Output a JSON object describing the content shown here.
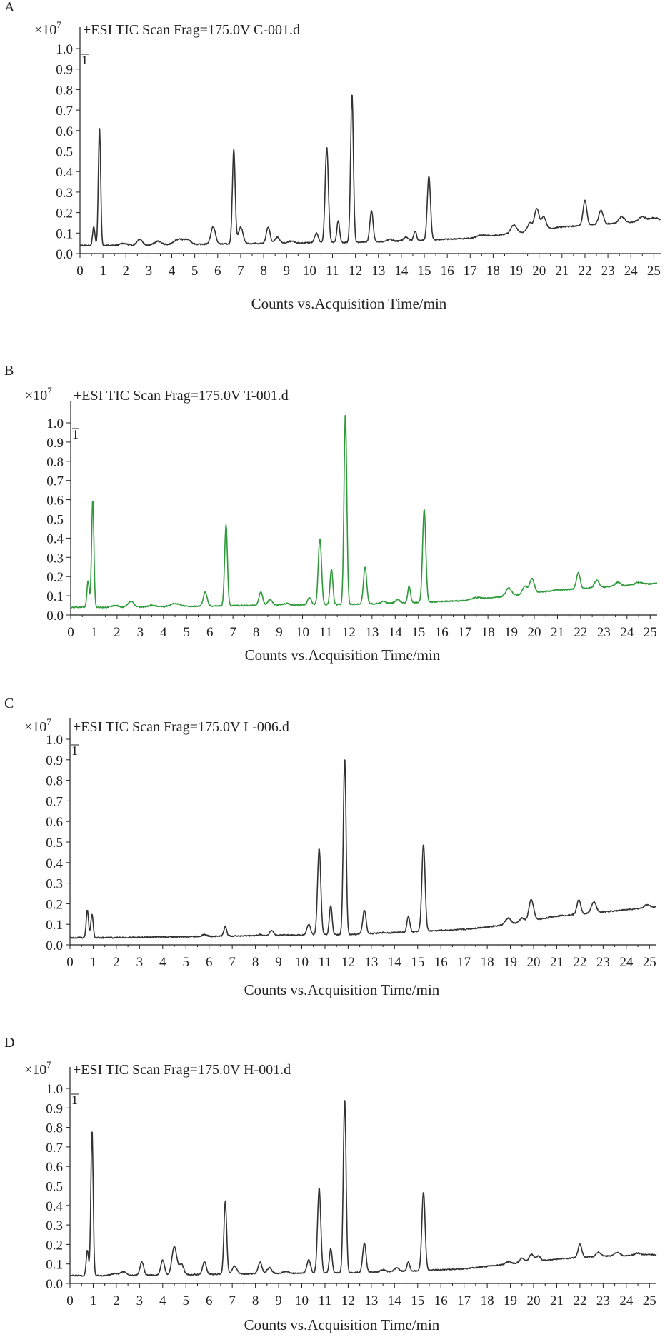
{
  "chart_data": [
    {
      "type": "line",
      "panel_label": "A",
      "title": "+ESI TIC Scan Frag=175.0V C-001.d",
      "scale_base": "×10",
      "scale_exp": "7",
      "y_marker": "1",
      "xlabel": "Counts vs.Acquisition Time/min",
      "xlim": [
        0,
        25.3
      ],
      "ylim": [
        0,
        1.0
      ],
      "x_ticks": [
        0,
        1,
        2,
        3,
        4,
        5,
        6,
        7,
        8,
        9,
        10,
        11,
        12,
        13,
        14,
        15,
        16,
        17,
        18,
        19,
        20,
        21,
        22,
        23,
        24,
        25
      ],
      "y_ticks": [
        "0.0",
        "0.1",
        "0.2",
        "0.3",
        "0.4",
        "0.5",
        "0.6",
        "0.7",
        "0.8",
        "0.9",
        "1.0"
      ],
      "color": "#333333",
      "baseline": [
        [
          0,
          0.04
        ],
        [
          0.7,
          0.04
        ],
        [
          2,
          0.04
        ],
        [
          5,
          0.045
        ],
        [
          8,
          0.05
        ],
        [
          12,
          0.055
        ],
        [
          15,
          0.065
        ],
        [
          17,
          0.075
        ],
        [
          19,
          0.1
        ],
        [
          21,
          0.13
        ],
        [
          23,
          0.145
        ],
        [
          25.3,
          0.165
        ]
      ],
      "peaks": [
        [
          0.6,
          0.13,
          0.05
        ],
        [
          0.85,
          0.62,
          0.05
        ],
        [
          1.9,
          0.05,
          0.15
        ],
        [
          2.6,
          0.07,
          0.12
        ],
        [
          3.4,
          0.06,
          0.15
        ],
        [
          4.3,
          0.07,
          0.2
        ],
        [
          4.7,
          0.065,
          0.15
        ],
        [
          5.8,
          0.13,
          0.1
        ],
        [
          6.7,
          0.51,
          0.06
        ],
        [
          7.0,
          0.13,
          0.1
        ],
        [
          8.2,
          0.13,
          0.08
        ],
        [
          8.6,
          0.08,
          0.1
        ],
        [
          9.2,
          0.06,
          0.12
        ],
        [
          10.3,
          0.1,
          0.08
        ],
        [
          10.75,
          0.52,
          0.07
        ],
        [
          11.25,
          0.16,
          0.06
        ],
        [
          11.85,
          0.78,
          0.06
        ],
        [
          12.7,
          0.21,
          0.07
        ],
        [
          13.5,
          0.07,
          0.1
        ],
        [
          14.2,
          0.08,
          0.1
        ],
        [
          14.6,
          0.11,
          0.06
        ],
        [
          15.2,
          0.38,
          0.07
        ],
        [
          17.5,
          0.09,
          0.2
        ],
        [
          18.9,
          0.14,
          0.12
        ],
        [
          19.6,
          0.15,
          0.1
        ],
        [
          19.9,
          0.22,
          0.1
        ],
        [
          20.2,
          0.18,
          0.1
        ],
        [
          22.0,
          0.26,
          0.08
        ],
        [
          22.7,
          0.21,
          0.1
        ],
        [
          23.6,
          0.18,
          0.12
        ],
        [
          24.5,
          0.18,
          0.15
        ],
        [
          25.0,
          0.175,
          0.15
        ]
      ]
    },
    {
      "type": "line",
      "panel_label": "B",
      "title": "+ESI TIC Scan Frag=175.0V T-001.d",
      "scale_base": "×10",
      "scale_exp": "7",
      "y_marker": "1",
      "xlabel": "Counts vs.Acquisition Time/min",
      "xlim": [
        0,
        25.3
      ],
      "ylim": [
        0,
        1.05
      ],
      "x_ticks": [
        0,
        1,
        2,
        3,
        4,
        5,
        6,
        7,
        8,
        9,
        10,
        11,
        12,
        13,
        14,
        15,
        16,
        17,
        18,
        19,
        20,
        21,
        22,
        23,
        24,
        25
      ],
      "y_ticks": [
        "0.0",
        "0.1",
        "0.2",
        "0.3",
        "0.4",
        "0.5",
        "0.6",
        "0.7",
        "0.8",
        "0.9",
        "1.0"
      ],
      "color": "#2e9a3a",
      "baseline": [
        [
          0,
          0.04
        ],
        [
          0.7,
          0.04
        ],
        [
          2,
          0.04
        ],
        [
          5,
          0.045
        ],
        [
          8,
          0.05
        ],
        [
          12,
          0.055
        ],
        [
          15,
          0.065
        ],
        [
          17,
          0.075
        ],
        [
          19,
          0.1
        ],
        [
          21,
          0.13
        ],
        [
          23,
          0.145
        ],
        [
          25.3,
          0.165
        ]
      ],
      "peaks": [
        [
          0.75,
          0.18,
          0.05
        ],
        [
          0.95,
          0.6,
          0.05
        ],
        [
          1.9,
          0.05,
          0.15
        ],
        [
          2.6,
          0.07,
          0.12
        ],
        [
          3.5,
          0.05,
          0.15
        ],
        [
          4.5,
          0.06,
          0.2
        ],
        [
          5.8,
          0.12,
          0.08
        ],
        [
          6.7,
          0.47,
          0.06
        ],
        [
          8.2,
          0.12,
          0.08
        ],
        [
          8.6,
          0.08,
          0.1
        ],
        [
          9.3,
          0.06,
          0.12
        ],
        [
          10.3,
          0.09,
          0.08
        ],
        [
          10.75,
          0.4,
          0.07
        ],
        [
          11.25,
          0.24,
          0.06
        ],
        [
          11.85,
          1.05,
          0.06
        ],
        [
          12.7,
          0.25,
          0.07
        ],
        [
          13.5,
          0.07,
          0.1
        ],
        [
          14.1,
          0.08,
          0.1
        ],
        [
          14.6,
          0.15,
          0.06
        ],
        [
          15.25,
          0.55,
          0.07
        ],
        [
          17.5,
          0.09,
          0.2
        ],
        [
          18.9,
          0.14,
          0.12
        ],
        [
          19.6,
          0.15,
          0.1
        ],
        [
          19.9,
          0.19,
          0.1
        ],
        [
          21.9,
          0.22,
          0.08
        ],
        [
          22.7,
          0.18,
          0.1
        ],
        [
          23.6,
          0.17,
          0.12
        ],
        [
          24.5,
          0.17,
          0.15
        ]
      ]
    },
    {
      "type": "line",
      "panel_label": "C",
      "title": "+ESI TIC Scan Frag=175.0V L-006.d",
      "scale_base": "×10",
      "scale_exp": "7",
      "y_marker": "1",
      "xlabel": "Counts vs.Acquisition Time/min",
      "xlim": [
        0,
        25.3
      ],
      "ylim": [
        0,
        1.0
      ],
      "x_ticks": [
        0,
        1,
        2,
        3,
        4,
        5,
        6,
        7,
        8,
        9,
        10,
        11,
        12,
        13,
        14,
        15,
        16,
        17,
        18,
        19,
        20,
        21,
        22,
        23,
        24,
        25
      ],
      "y_ticks": [
        "0.0",
        "0.1",
        "0.2",
        "0.3",
        "0.4",
        "0.5",
        "0.6",
        "0.7",
        "0.8",
        "0.9",
        "1.0"
      ],
      "color": "#333333",
      "baseline": [
        [
          0,
          0.035
        ],
        [
          0.7,
          0.035
        ],
        [
          2,
          0.035
        ],
        [
          5,
          0.04
        ],
        [
          8,
          0.045
        ],
        [
          12,
          0.05
        ],
        [
          15,
          0.065
        ],
        [
          17,
          0.075
        ],
        [
          19,
          0.1
        ],
        [
          21,
          0.14
        ],
        [
          23,
          0.16
        ],
        [
          25.3,
          0.185
        ]
      ],
      "peaks": [
        [
          0.75,
          0.17,
          0.05
        ],
        [
          0.95,
          0.15,
          0.05
        ],
        [
          5.8,
          0.05,
          0.1
        ],
        [
          6.7,
          0.09,
          0.06
        ],
        [
          8.2,
          0.05,
          0.08
        ],
        [
          8.7,
          0.07,
          0.08
        ],
        [
          9.3,
          0.05,
          0.1
        ],
        [
          10.3,
          0.1,
          0.08
        ],
        [
          10.75,
          0.47,
          0.07
        ],
        [
          11.25,
          0.19,
          0.06
        ],
        [
          11.85,
          0.91,
          0.06
        ],
        [
          12.7,
          0.17,
          0.07
        ],
        [
          13.5,
          0.06,
          0.1
        ],
        [
          14.6,
          0.14,
          0.06
        ],
        [
          15.25,
          0.49,
          0.07
        ],
        [
          17.7,
          0.08,
          0.2
        ],
        [
          18.9,
          0.13,
          0.12
        ],
        [
          19.5,
          0.13,
          0.1
        ],
        [
          19.9,
          0.22,
          0.1
        ],
        [
          21.95,
          0.22,
          0.08
        ],
        [
          22.6,
          0.21,
          0.1
        ],
        [
          24.9,
          0.195,
          0.12
        ]
      ]
    },
    {
      "type": "line",
      "panel_label": "D",
      "title": "+ESI TIC Scan Frag=175.0V H-001.d",
      "scale_base": "×10",
      "scale_exp": "7",
      "y_marker": "1",
      "xlabel": "Counts vs.Acquisition Time/min",
      "xlim": [
        0,
        25.3
      ],
      "ylim": [
        0,
        1.0
      ],
      "x_ticks": [
        0,
        1,
        2,
        3,
        4,
        5,
        6,
        7,
        8,
        9,
        10,
        11,
        12,
        13,
        14,
        15,
        16,
        17,
        18,
        19,
        20,
        21,
        22,
        23,
        24,
        25
      ],
      "y_ticks": [
        "0.0",
        "0.1",
        "0.2",
        "0.3",
        "0.4",
        "0.5",
        "0.6",
        "0.7",
        "0.8",
        "0.9",
        "1.0"
      ],
      "color": "#333333",
      "baseline": [
        [
          0,
          0.04
        ],
        [
          0.7,
          0.04
        ],
        [
          2,
          0.04
        ],
        [
          5,
          0.045
        ],
        [
          8,
          0.05
        ],
        [
          12,
          0.055
        ],
        [
          15,
          0.065
        ],
        [
          17,
          0.075
        ],
        [
          19,
          0.1
        ],
        [
          21,
          0.125
        ],
        [
          23,
          0.14
        ],
        [
          25.3,
          0.145
        ]
      ],
      "peaks": [
        [
          0.75,
          0.17,
          0.05
        ],
        [
          0.95,
          0.79,
          0.05
        ],
        [
          1.9,
          0.05,
          0.15
        ],
        [
          2.3,
          0.06,
          0.12
        ],
        [
          3.1,
          0.11,
          0.08
        ],
        [
          4.0,
          0.12,
          0.08
        ],
        [
          4.5,
          0.19,
          0.1
        ],
        [
          4.8,
          0.1,
          0.1
        ],
        [
          5.8,
          0.11,
          0.08
        ],
        [
          6.7,
          0.42,
          0.06
        ],
        [
          7.1,
          0.09,
          0.1
        ],
        [
          8.2,
          0.11,
          0.08
        ],
        [
          8.6,
          0.08,
          0.1
        ],
        [
          9.3,
          0.06,
          0.12
        ],
        [
          10.3,
          0.12,
          0.08
        ],
        [
          10.75,
          0.49,
          0.07
        ],
        [
          11.25,
          0.18,
          0.06
        ],
        [
          11.85,
          0.95,
          0.06
        ],
        [
          12.7,
          0.21,
          0.07
        ],
        [
          13.5,
          0.07,
          0.1
        ],
        [
          14.1,
          0.08,
          0.1
        ],
        [
          14.6,
          0.11,
          0.06
        ],
        [
          15.25,
          0.47,
          0.07
        ],
        [
          17.5,
          0.08,
          0.2
        ],
        [
          18.9,
          0.11,
          0.12
        ],
        [
          19.5,
          0.13,
          0.1
        ],
        [
          19.9,
          0.15,
          0.1
        ],
        [
          20.2,
          0.14,
          0.1
        ],
        [
          22.0,
          0.2,
          0.08
        ],
        [
          22.8,
          0.16,
          0.1
        ],
        [
          23.6,
          0.16,
          0.12
        ],
        [
          24.5,
          0.155,
          0.15
        ],
        [
          25.0,
          0.15,
          0.12
        ]
      ]
    }
  ]
}
